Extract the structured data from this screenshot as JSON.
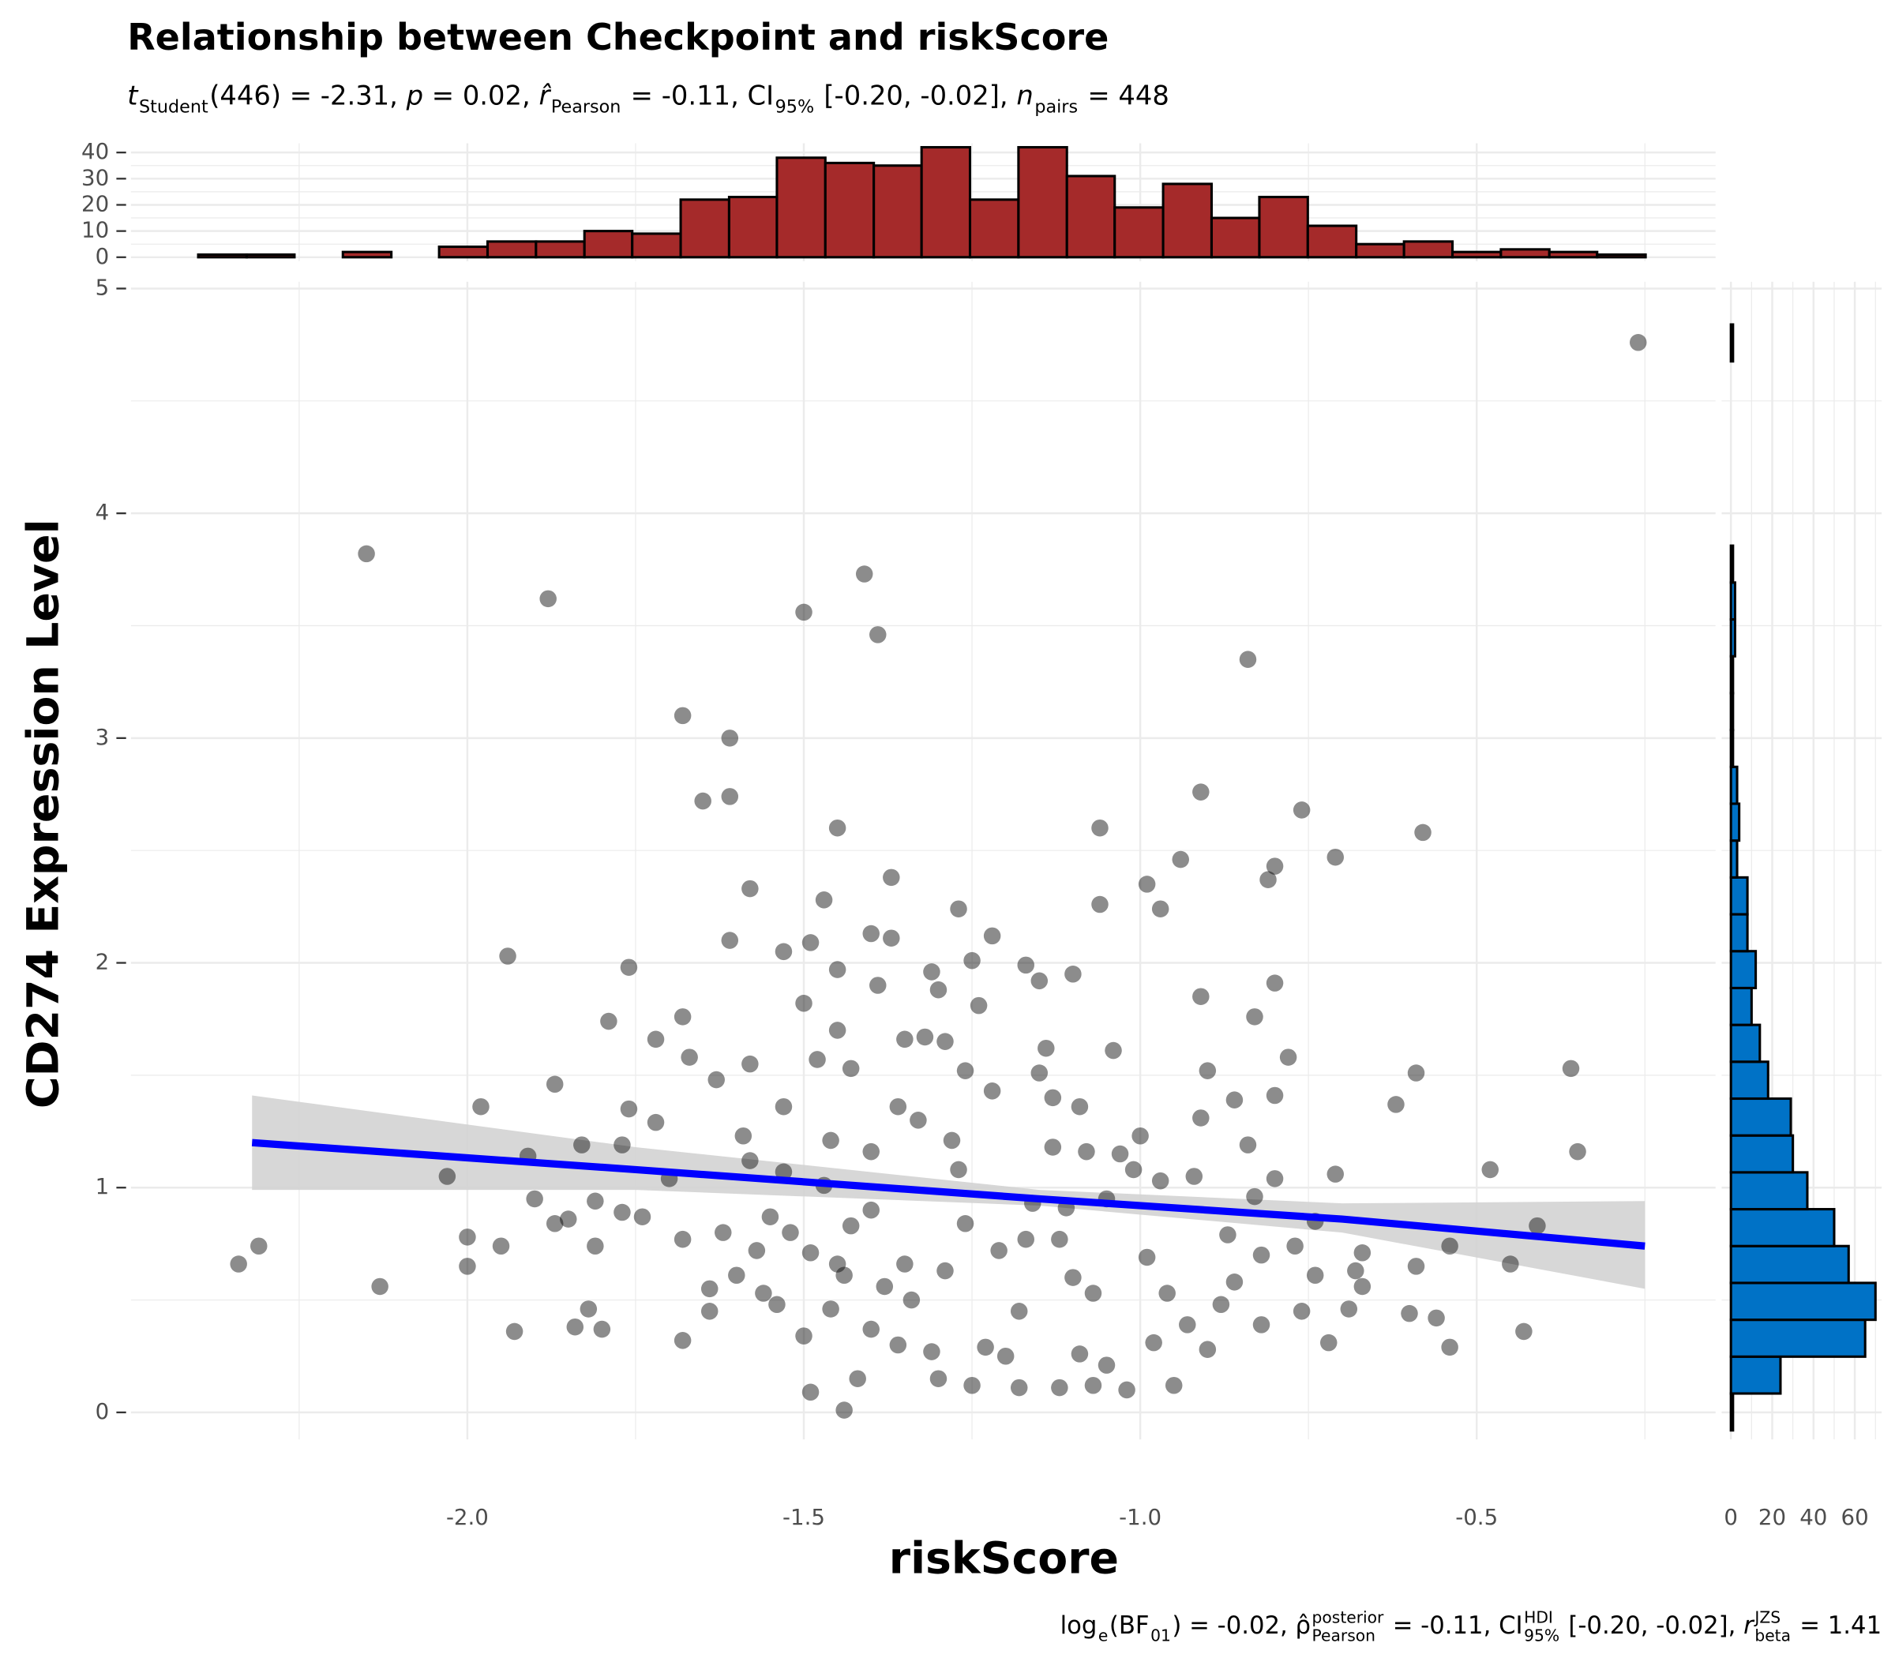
{
  "chart_data": [
    {
      "type": "scatter",
      "title": "Relationship between Checkpoint and riskScore",
      "subtitle": [
        {
          "text": "t",
          "italic": true,
          "sub": "Student"
        },
        {
          "text": "(446) = -2.31, "
        },
        {
          "text": "p",
          "italic": true
        },
        {
          "text": " = 0.02, "
        },
        {
          "text": "r̂",
          "italic": true,
          "sub": "Pearson"
        },
        {
          "text": " = -0.11, CI",
          "sub": "95%"
        },
        {
          "text": " [-0.20, -0.02], "
        },
        {
          "text": "n",
          "italic": true,
          "sub": "pairs"
        },
        {
          "text": " = 448"
        }
      ],
      "caption": [
        {
          "text": "log",
          "sub": "e"
        },
        {
          "text": "(BF",
          "sub": "01"
        },
        {
          "text": ") = -0.02, "
        },
        {
          "text": "ρ̂",
          "sup": "posterior",
          "sub": "Pearson"
        },
        {
          "text": " = -0.11, CI",
          "sup": "HDI",
          "sub": "95%"
        },
        {
          "text": " [-0.20, -0.02], "
        },
        {
          "text": "r",
          "italic": true,
          "sup": "JZS",
          "sub": "beta"
        },
        {
          "text": " = 1.41"
        }
      ],
      "x_label": "riskScore",
      "y_label": "CD274 Expression Level",
      "x": [
        -2.34,
        -2.31,
        -2.15,
        -2.13,
        -2.03,
        -2.0,
        -2.0,
        -1.98,
        -1.95,
        -1.94,
        -1.93,
        -1.91,
        -1.9,
        -1.88,
        -1.87,
        -1.87,
        -1.85,
        -1.84,
        -1.83,
        -1.82,
        -1.81,
        -1.81,
        -1.8,
        -1.79,
        -1.77,
        -1.77,
        -1.76,
        -1.76,
        -1.74,
        -1.72,
        -1.72,
        -1.7,
        -1.68,
        -1.68,
        -1.68,
        -1.68,
        -1.67,
        -1.65,
        -1.64,
        -1.64,
        -1.63,
        -1.62,
        -1.61,
        -1.61,
        -1.61,
        -1.6,
        -1.59,
        -1.58,
        -1.58,
        -1.58,
        -1.57,
        -1.56,
        -1.55,
        -1.54,
        -1.53,
        -1.53,
        -1.53,
        -1.52,
        -1.5,
        -1.5,
        -1.5,
        -1.49,
        -1.49,
        -1.49,
        -1.48,
        -1.47,
        -1.47,
        -1.46,
        -1.45,
        -1.45,
        -1.45,
        -1.45,
        -1.46,
        -1.44,
        -1.44,
        -1.43,
        -1.43,
        -1.42,
        -1.4,
        -1.41,
        -1.4,
        -1.4,
        -1.4,
        -1.39,
        -1.39,
        -1.38,
        -1.37,
        -1.37,
        -1.36,
        -1.36,
        -1.35,
        -1.35,
        -1.34,
        -1.33,
        -1.32,
        -1.31,
        -1.31,
        -1.3,
        -1.3,
        -1.29,
        -1.29,
        -1.28,
        -1.27,
        -1.27,
        -1.26,
        -1.26,
        -1.25,
        -1.25,
        -1.24,
        -1.23,
        -1.22,
        -1.22,
        -1.21,
        -1.2,
        -1.18,
        -1.18,
        -1.17,
        -1.17,
        -1.16,
        -1.15,
        -1.15,
        -1.14,
        -1.13,
        -1.13,
        -1.12,
        -1.12,
        -1.11,
        -1.1,
        -1.1,
        -1.09,
        -1.09,
        -1.08,
        -1.07,
        -1.07,
        -1.06,
        -1.06,
        -1.05,
        -1.05,
        -1.04,
        -1.03,
        -1.02,
        -1.01,
        -1.0,
        -0.99,
        -0.99,
        -0.98,
        -0.97,
        -0.97,
        -0.96,
        -0.95,
        -0.94,
        -0.93,
        -0.92,
        -0.91,
        -0.91,
        -0.91,
        -0.9,
        -0.9,
        -0.88,
        -0.87,
        -0.86,
        -0.86,
        -0.84,
        -0.84,
        -0.83,
        -0.83,
        -0.82,
        -0.82,
        -0.81,
        -0.8,
        -0.8,
        -0.8,
        -0.8,
        -0.78,
        -0.77,
        -0.76,
        -0.76,
        -0.74,
        -0.74,
        -0.72,
        -0.71,
        -0.71,
        -0.69,
        -0.68,
        -0.67,
        -0.67,
        -0.62,
        -0.6,
        -0.59,
        -0.59,
        -0.58,
        -0.56,
        -0.54,
        -0.54,
        -0.48,
        -0.45,
        -0.43,
        -0.41,
        -0.36,
        -0.35,
        -0.26
      ],
      "y": [
        0.66,
        0.74,
        3.82,
        0.56,
        1.05,
        0.78,
        0.65,
        1.36,
        0.74,
        2.03,
        0.36,
        1.14,
        0.95,
        3.62,
        1.46,
        0.84,
        0.86,
        0.38,
        1.19,
        0.46,
        0.94,
        0.74,
        0.37,
        1.74,
        1.19,
        0.89,
        1.35,
        1.98,
        0.87,
        1.29,
        1.66,
        1.04,
        3.1,
        0.77,
        0.32,
        1.76,
        1.58,
        2.72,
        0.55,
        0.45,
        1.48,
        0.8,
        2.74,
        3.0,
        2.1,
        0.61,
        1.23,
        1.12,
        2.33,
        1.55,
        0.72,
        0.53,
        0.87,
        0.48,
        2.05,
        1.36,
        1.07,
        0.8,
        3.56,
        1.82,
        0.34,
        0.09,
        2.09,
        0.71,
        1.57,
        2.28,
        1.01,
        0.46,
        0.66,
        1.97,
        2.6,
        1.7,
        1.21,
        0.01,
        0.61,
        1.53,
        0.83,
        0.15,
        1.16,
        3.73,
        0.37,
        0.9,
        2.13,
        3.46,
        1.9,
        0.56,
        2.11,
        2.38,
        1.36,
        0.3,
        1.66,
        0.66,
        0.5,
        1.3,
        1.67,
        0.27,
        1.96,
        0.15,
        1.88,
        1.65,
        0.63,
        1.21,
        1.08,
        2.24,
        0.84,
        1.52,
        0.12,
        2.01,
        1.81,
        0.29,
        1.43,
        2.12,
        0.72,
        0.25,
        0.45,
        0.11,
        1.99,
        0.77,
        0.93,
        1.51,
        1.92,
        1.62,
        1.4,
        1.18,
        0.11,
        0.77,
        0.91,
        0.6,
        1.95,
        0.26,
        1.36,
        1.16,
        0.12,
        0.53,
        2.6,
        2.26,
        0.95,
        0.21,
        1.61,
        1.15,
        0.1,
        1.08,
        1.23,
        0.69,
        2.35,
        0.31,
        2.24,
        1.03,
        0.53,
        0.12,
        2.46,
        0.39,
        1.05,
        1.31,
        2.76,
        1.85,
        1.52,
        0.28,
        0.48,
        0.79,
        1.39,
        0.58,
        3.35,
        1.19,
        0.96,
        1.76,
        0.7,
        0.39,
        2.37,
        1.91,
        1.41,
        2.43,
        1.04,
        1.58,
        0.74,
        2.68,
        0.45,
        0.61,
        0.85,
        0.31,
        2.47,
        1.06,
        0.46,
        0.63,
        0.71,
        0.56,
        1.37,
        0.44,
        0.65,
        1.51,
        2.58,
        0.42,
        0.29,
        0.74,
        1.08,
        0.66,
        0.36,
        0.83,
        1.53,
        1.16,
        4.76
      ],
      "color": "#000000",
      "alpha": 0.45,
      "fit": {
        "x": [
          -2.32,
          -1.75,
          -1.15,
          -0.7,
          -0.25
        ],
        "y": [
          1.2,
          1.08,
          0.95,
          0.86,
          0.74
        ],
        "lower": [
          0.99,
          0.99,
          0.92,
          0.8,
          0.55
        ],
        "upper": [
          1.41,
          1.18,
          0.99,
          0.93,
          0.94
        ],
        "color": "#0000ff",
        "band_color": "#d3d3d3"
      },
      "xlim": [
        -2.5,
        -0.145
      ],
      "ylim": [
        -0.12,
        5.03
      ],
      "xticks": [
        {
          "value": -2,
          "label": "-2.0"
        },
        -1.5,
        {
          "value": -1,
          "label": "-1.0"
        },
        -0.5
      ],
      "yticks": [
        0,
        1,
        2,
        3,
        4,
        5
      ],
      "grid": true
    },
    {
      "type": "histogram",
      "orientation": "vertical",
      "bins": [
        -2.4,
        -2.328,
        -2.257,
        -2.185,
        -2.113,
        -2.042,
        -1.97,
        -1.898,
        -1.826,
        -1.755,
        -1.683,
        -1.611,
        -1.54,
        -1.468,
        -1.396,
        -1.325,
        -1.253,
        -1.181,
        -1.109,
        -1.038,
        -0.966,
        -0.894,
        -0.823,
        -0.751,
        -0.679,
        -0.608,
        -0.536,
        -0.464,
        -0.392,
        -0.321,
        -0.249
      ],
      "values": [
        1,
        1,
        0,
        2,
        0,
        4,
        6,
        6,
        10,
        9,
        22,
        23,
        38,
        36,
        35,
        42,
        22,
        42,
        31,
        19,
        28,
        15,
        23,
        12,
        5,
        6,
        2,
        3,
        2,
        1
      ],
      "color": "#a52a2a",
      "ylim": [
        -1.5,
        43.5
      ],
      "yticks": [
        0,
        10,
        20,
        30,
        40
      ],
      "grid": true
    },
    {
      "type": "histogram",
      "orientation": "horizontal",
      "bins": [
        -0.08,
        0.084,
        0.248,
        0.412,
        0.576,
        0.74,
        0.904,
        1.068,
        1.232,
        1.396,
        1.56,
        1.724,
        1.888,
        2.052,
        2.216,
        2.38,
        2.544,
        2.708,
        2.872,
        3.036,
        3.2,
        3.364,
        3.528,
        3.692,
        3.856,
        4.02,
        4.184,
        4.348,
        4.512,
        4.676,
        4.84
      ],
      "values": [
        1,
        24,
        65,
        70,
        57,
        50,
        37,
        30,
        29,
        18,
        14,
        10,
        12,
        8,
        8,
        3,
        4,
        3,
        1,
        1,
        1,
        2,
        2,
        1,
        0,
        0,
        0,
        0,
        0,
        1
      ],
      "color": "#0072c6",
      "xlim": [
        -4.5,
        73
      ],
      "xticks": [
        0,
        20,
        40,
        60
      ],
      "grid": true
    }
  ]
}
